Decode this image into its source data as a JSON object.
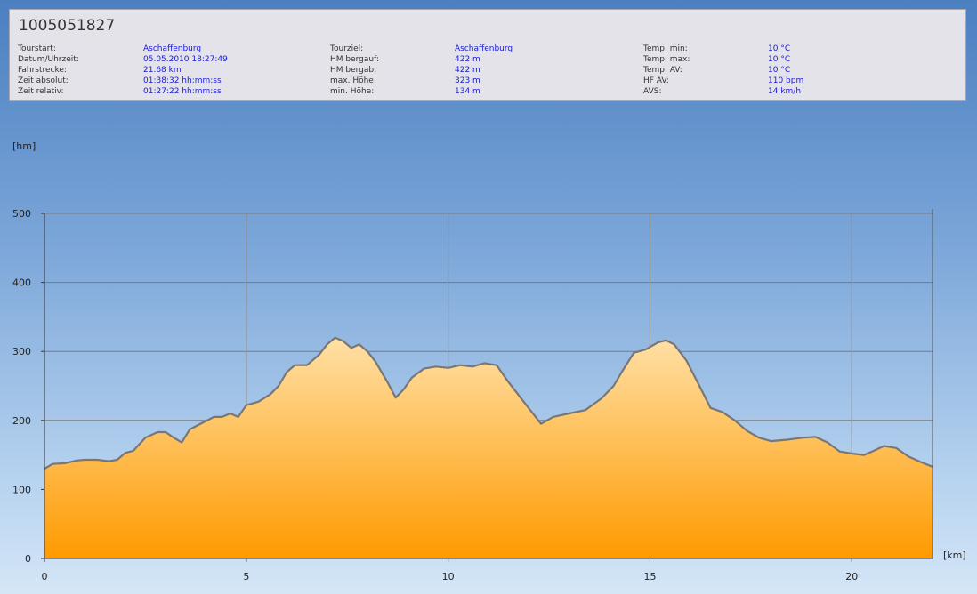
{
  "header": {
    "title": "1005051827",
    "columns": [
      [
        {
          "label": "Tourstart:",
          "value": "Aschaffenburg"
        },
        {
          "label": "Datum/Uhrzeit:",
          "value": "05.05.2010 18:27:49"
        },
        {
          "label": "Fahrstrecke:",
          "value": "21.68 km"
        },
        {
          "label": "Zeit absolut:",
          "value": "01:38:32 hh:mm:ss"
        },
        {
          "label": "Zeit relativ:",
          "value": "01:27:22 hh:mm:ss"
        }
      ],
      [
        {
          "label": "Tourziel:",
          "value": "Aschaffenburg"
        },
        {
          "label": "HM bergauf:",
          "value": "422 m"
        },
        {
          "label": "HM bergab:",
          "value": "422 m"
        },
        {
          "label": "max. Höhe:",
          "value": "323 m"
        },
        {
          "label": "min. Höhe:",
          "value": "134 m"
        }
      ],
      [
        {
          "label": "Temp. min:",
          "value": "10 °C"
        },
        {
          "label": "Temp. max:",
          "value": "10 °C"
        },
        {
          "label": "Temp. AV:",
          "value": "10 °C"
        },
        {
          "label": "HF AV:",
          "value": "110 bpm"
        },
        {
          "label": "AVS:",
          "value": "14 km/h"
        }
      ]
    ]
  },
  "chart_data": {
    "type": "area",
    "ylabel": "[hm]",
    "xlabel": "[km]",
    "xlim": [
      0,
      22
    ],
    "ylim": [
      0,
      500
    ],
    "x_ticks": [
      0,
      5,
      10,
      15,
      20
    ],
    "y_ticks": [
      0,
      100,
      200,
      300,
      400,
      500
    ],
    "grid": true,
    "colors": {
      "fill_top": "#ffe0a6",
      "fill_bottom": "#ff9a00",
      "line": "#777777",
      "grid": "#7a7a7a"
    },
    "x": [
      0,
      0.2,
      0.5,
      0.8,
      1.0,
      1.3,
      1.6,
      1.8,
      2.0,
      2.2,
      2.5,
      2.8,
      3.0,
      3.2,
      3.4,
      3.6,
      3.9,
      4.2,
      4.4,
      4.6,
      4.8,
      5.0,
      5.3,
      5.6,
      5.8,
      6.0,
      6.2,
      6.5,
      6.8,
      7.0,
      7.2,
      7.4,
      7.6,
      7.8,
      8.0,
      8.2,
      8.5,
      8.7,
      8.9,
      9.1,
      9.4,
      9.7,
      10.0,
      10.3,
      10.6,
      10.9,
      11.2,
      11.5,
      11.7,
      11.9,
      12.1,
      12.3,
      12.6,
      13.0,
      13.4,
      13.8,
      14.1,
      14.3,
      14.6,
      14.9,
      15.2,
      15.4,
      15.6,
      15.9,
      16.2,
      16.5,
      16.8,
      17.1,
      17.4,
      17.7,
      18.0,
      18.4,
      18.8,
      19.1,
      19.4,
      19.7,
      20.0,
      20.3,
      20.5,
      20.8,
      21.1,
      21.4,
      21.7,
      22.0
    ],
    "values": [
      130,
      137,
      138,
      142,
      143,
      143,
      141,
      143,
      153,
      156,
      175,
      183,
      183,
      175,
      168,
      187,
      196,
      205,
      205,
      210,
      205,
      222,
      227,
      238,
      250,
      270,
      280,
      280,
      295,
      310,
      320,
      315,
      305,
      310,
      300,
      285,
      255,
      233,
      245,
      262,
      275,
      278,
      276,
      280,
      278,
      283,
      280,
      255,
      240,
      225,
      210,
      195,
      205,
      210,
      215,
      232,
      250,
      270,
      298,
      303,
      313,
      316,
      310,
      287,
      253,
      218,
      212,
      200,
      185,
      175,
      170,
      172,
      175,
      176,
      168,
      155,
      152,
      150,
      155,
      163,
      160,
      148,
      140,
      133
    ]
  }
}
